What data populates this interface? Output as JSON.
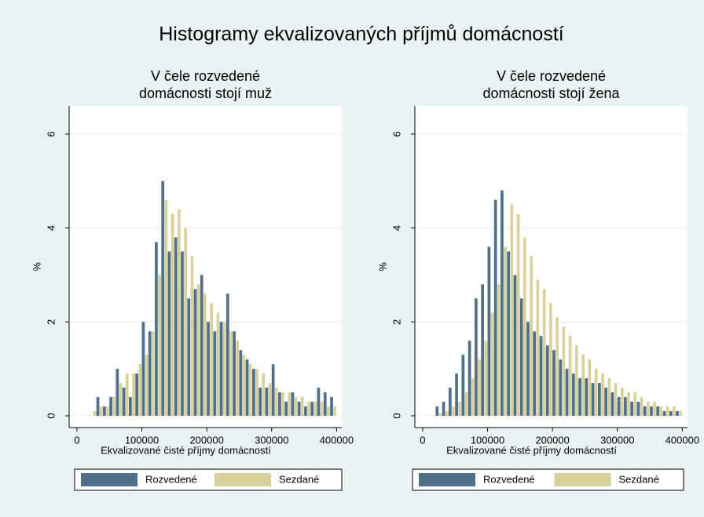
{
  "title": "Histogramy ekvalizovaných příjmů domácností",
  "chart_data": [
    {
      "type": "histogram",
      "title": [
        "V čele rozvedené",
        "domácnosti stojí muž"
      ],
      "x_label": "Ekvalizované čisté příjmy domácností",
      "y_label": "%",
      "bins": [
        20000,
        30000,
        40000,
        50000,
        60000,
        70000,
        80000,
        90000,
        100000,
        110000,
        120000,
        130000,
        140000,
        150000,
        160000,
        170000,
        180000,
        190000,
        200000,
        210000,
        220000,
        230000,
        240000,
        250000,
        260000,
        270000,
        280000,
        290000,
        300000,
        310000,
        320000,
        330000,
        340000,
        350000,
        360000,
        370000,
        380000,
        390000,
        400000
      ],
      "series": [
        {
          "name": "Rozvedené",
          "color": "#4f6f8a",
          "values": [
            0,
            0.4,
            0.2,
            0.4,
            1.0,
            0.6,
            0.4,
            0.9,
            2.0,
            1.8,
            3.7,
            5.0,
            3.5,
            3.8,
            3.5,
            2.5,
            2.7,
            3.0,
            2.0,
            1.8,
            2.0,
            2.6,
            1.8,
            1.4,
            1.2,
            1.0,
            0.6,
            0.6,
            1.1,
            0.5,
            0.3,
            0.5,
            0.3,
            0.2,
            0.3,
            0.6,
            0.5,
            0.4
          ]
        },
        {
          "name": "Sezdané",
          "color": "#d9d19c",
          "values": [
            0.1,
            0.2,
            0.2,
            0.4,
            0.7,
            0.9,
            0.9,
            1.1,
            1.3,
            1.8,
            3.0,
            4.6,
            4.3,
            4.4,
            4.0,
            3.4,
            2.8,
            2.6,
            2.4,
            2.2,
            2.0,
            1.8,
            1.6,
            1.3,
            1.1,
            1.0,
            0.9,
            0.7,
            0.6,
            0.5,
            0.5,
            0.4,
            0.4,
            0.3,
            0.3,
            0.3,
            0.2,
            0.2
          ]
        }
      ],
      "xlim": [
        -12000,
        408000
      ],
      "xticks": [
        0,
        100000,
        200000,
        300000,
        400000
      ],
      "ylim": [
        -0.25,
        6.6
      ],
      "yticks": [
        0,
        2,
        4,
        6
      ],
      "grid": true
    },
    {
      "type": "histogram",
      "title": [
        "V čele rozvedené",
        "domácnosti stojí žena"
      ],
      "x_label": "Ekvalizované čisté příjmy domácností",
      "y_label": "%",
      "bins": [
        20000,
        30000,
        40000,
        50000,
        60000,
        70000,
        80000,
        90000,
        100000,
        110000,
        120000,
        130000,
        140000,
        150000,
        160000,
        170000,
        180000,
        190000,
        200000,
        210000,
        220000,
        230000,
        240000,
        250000,
        260000,
        270000,
        280000,
        290000,
        300000,
        310000,
        320000,
        330000,
        340000,
        350000,
        360000,
        370000,
        380000,
        390000,
        400000
      ],
      "series": [
        {
          "name": "Rozvedené",
          "color": "#4f6f8a",
          "values": [
            0.2,
            0.3,
            0.6,
            0.9,
            1.3,
            1.6,
            2.5,
            2.8,
            3.6,
            4.6,
            4.8,
            3.5,
            3.0,
            2.5,
            2.0,
            1.8,
            1.7,
            1.5,
            1.4,
            1.2,
            1.0,
            0.9,
            0.8,
            0.8,
            0.7,
            0.7,
            0.6,
            0.5,
            0.4,
            0.4,
            0.3,
            0.3,
            0.2,
            0.2,
            0.2,
            0.1,
            0.1,
            0.1
          ]
        },
        {
          "name": "Sezdané",
          "color": "#d9d19c",
          "values": [
            0.05,
            0.1,
            0.2,
            0.3,
            0.5,
            0.8,
            1.2,
            1.6,
            2.2,
            2.8,
            3.6,
            4.5,
            4.3,
            3.8,
            3.4,
            2.9,
            2.7,
            2.4,
            2.1,
            1.9,
            1.7,
            1.5,
            1.3,
            1.2,
            1.0,
            0.9,
            0.8,
            0.7,
            0.6,
            0.5,
            0.5,
            0.4,
            0.3,
            0.3,
            0.2,
            0.2,
            0.2,
            0.1
          ]
        }
      ],
      "xlim": [
        -12000,
        408000
      ],
      "xticks": [
        0,
        100000,
        200000,
        300000,
        400000
      ],
      "ylim": [
        -0.25,
        6.6
      ],
      "yticks": [
        0,
        2,
        4,
        6
      ],
      "grid": true
    }
  ]
}
